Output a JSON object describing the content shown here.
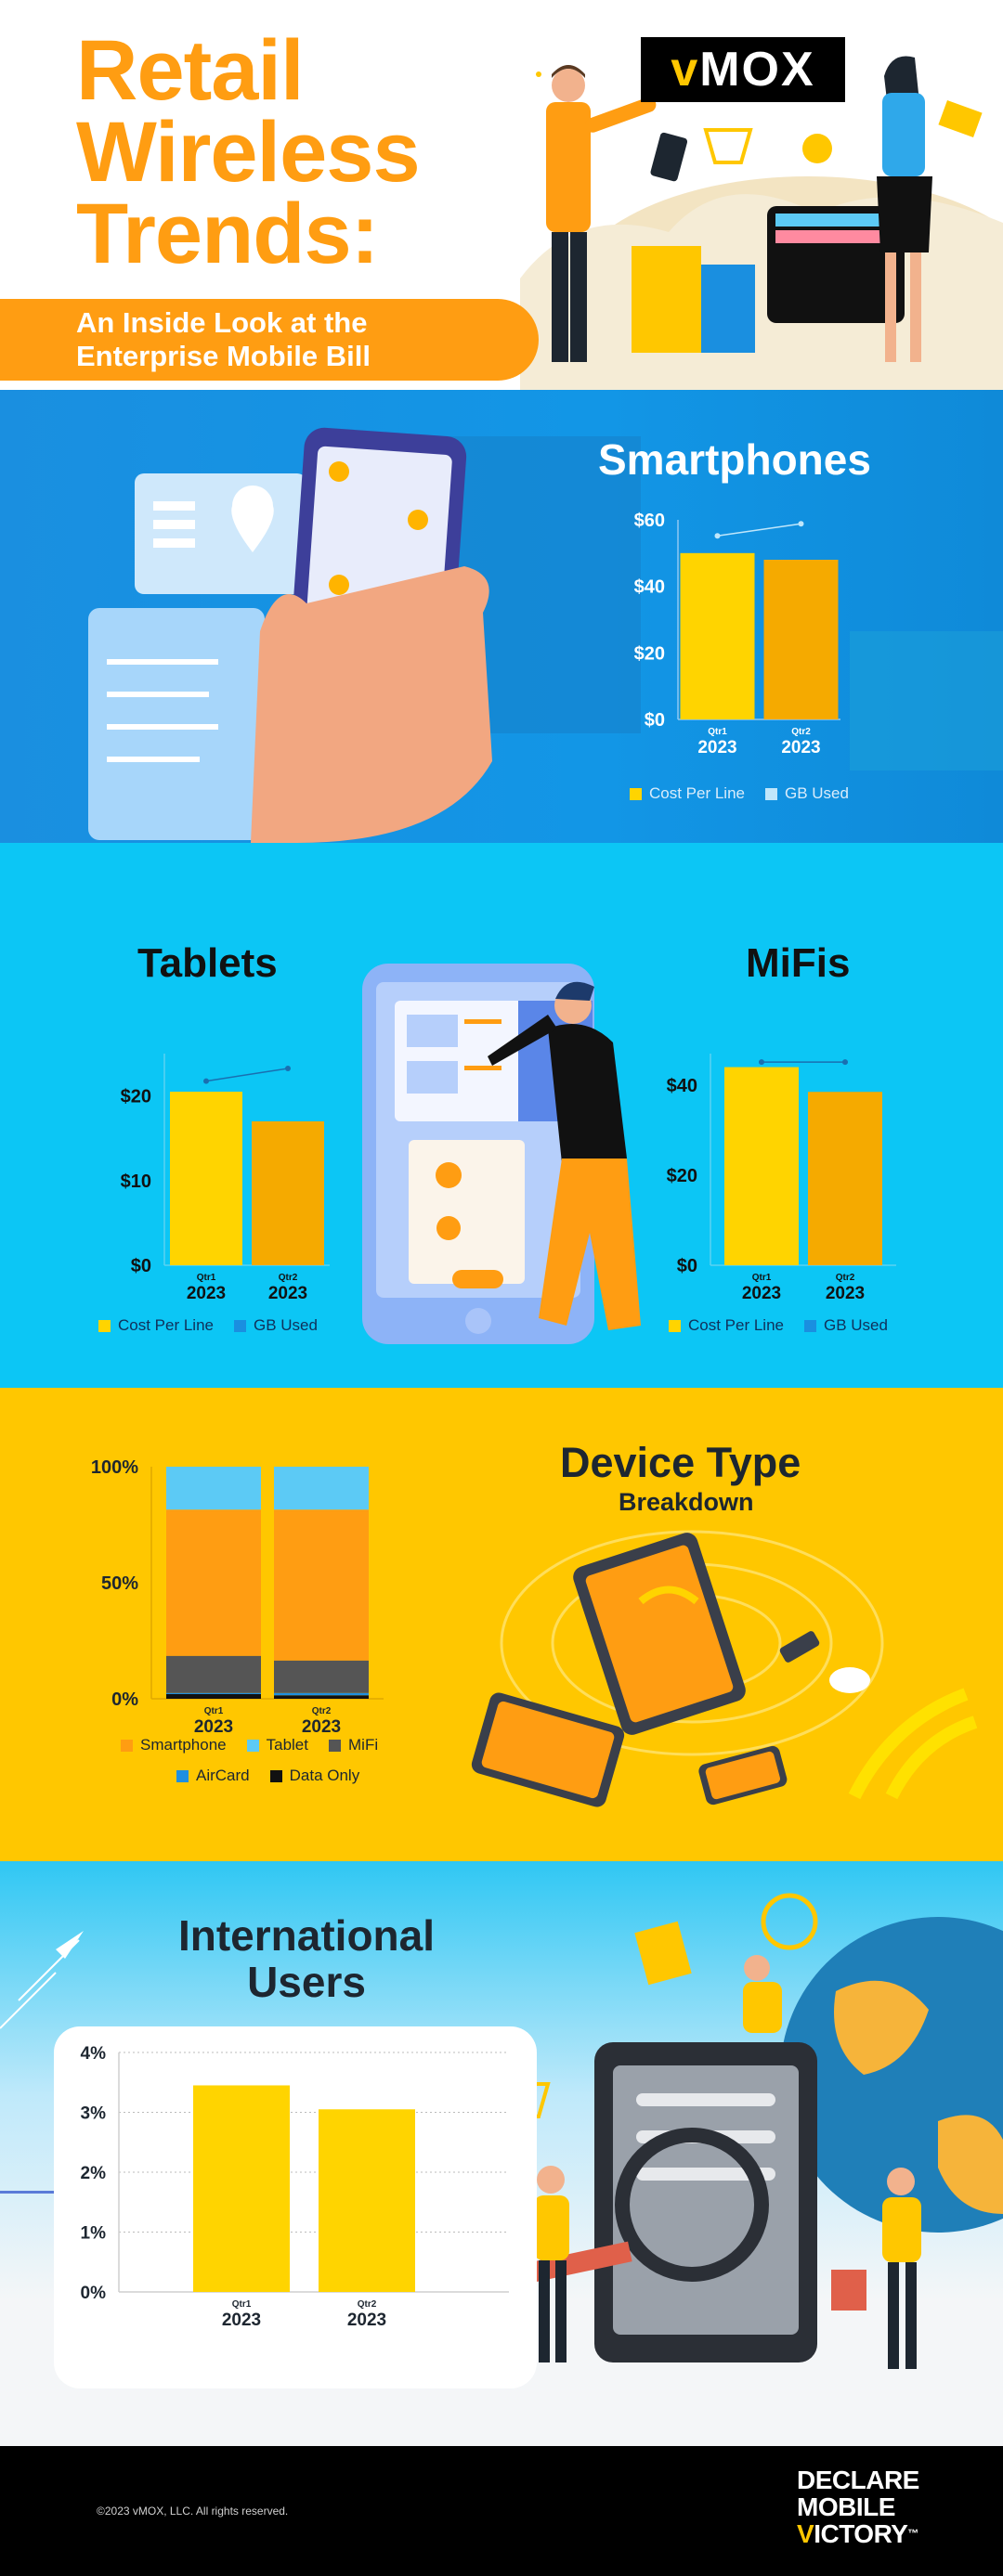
{
  "header": {
    "title_line1": "Retail",
    "title_line2": "Wireless",
    "title_line3": "Trends:",
    "subtitle_line1": "An Inside Look at the",
    "subtitle_line2": "Enterprise Mobile Bill",
    "logo_v": "v",
    "logo_rest": "MOX"
  },
  "colors": {
    "orange": "#ff9d12",
    "yellow": "#ffd400",
    "gold": "#f5aa00",
    "sky": "#0cc6f5",
    "blue": "#1a8fe0",
    "dark": "#1d2630"
  },
  "sections": {
    "smartphones_title": "Smartphones",
    "tablets_title": "Tablets",
    "mifis_title": "MiFis",
    "device_title": "Device Type",
    "device_subtitle": "Breakdown",
    "intl_title_line1": "International",
    "intl_title_line2": "Users"
  },
  "legend_labels": {
    "cost_per_line": "Cost Per Line",
    "gb_used": "GB Used",
    "smartphone": "Smartphone",
    "tablet": "Tablet",
    "mifi": "MiFi",
    "aircard": "AirCard",
    "data_only": "Data Only"
  },
  "chart_data": [
    {
      "id": "smartphones",
      "type": "bar",
      "title": "Smartphones",
      "categories": [
        [
          "Qtr1",
          "2023"
        ],
        [
          "Qtr2",
          "2023"
        ]
      ],
      "series": [
        {
          "name": "Cost Per Line",
          "values": [
            50,
            48
          ],
          "color_key": "bars"
        },
        {
          "name": "GB Used",
          "relative_values": [
            0.92,
            0.98
          ],
          "marker": "line"
        }
      ],
      "bar_colors": [
        "#ffd400",
        "#f5aa00"
      ],
      "yticks": [
        "$0",
        "$20",
        "$40",
        "$60"
      ],
      "ylim": [
        0,
        60
      ],
      "legend": "bottom"
    },
    {
      "id": "tablets",
      "type": "bar",
      "title": "Tablets",
      "categories": [
        [
          "Qtr1",
          "2023"
        ],
        [
          "Qtr2",
          "2023"
        ]
      ],
      "series": [
        {
          "name": "Cost Per Line",
          "values": [
            20.5,
            17
          ]
        },
        {
          "name": "GB Used",
          "relative_values": [
            0.87,
            0.93
          ],
          "marker": "line"
        }
      ],
      "bar_colors": [
        "#ffd400",
        "#f5aa00"
      ],
      "yticks": [
        "$0",
        "$10",
        "$20"
      ],
      "ylim": [
        0,
        25
      ],
      "legend": "bottom"
    },
    {
      "id": "mifis",
      "type": "bar",
      "title": "MiFis",
      "categories": [
        [
          "Qtr1",
          "2023"
        ],
        [
          "Qtr2",
          "2023"
        ]
      ],
      "series": [
        {
          "name": "Cost Per Line",
          "values": [
            44,
            38.5
          ]
        },
        {
          "name": "GB Used",
          "relative_values": [
            0.96,
            0.96
          ],
          "marker": "line"
        }
      ],
      "bar_colors": [
        "#ffd400",
        "#f5aa00"
      ],
      "yticks": [
        "$0",
        "$20",
        "$40"
      ],
      "ylim": [
        0,
        47
      ],
      "legend": "bottom"
    },
    {
      "id": "device_type",
      "type": "bar",
      "stacked": true,
      "title": "Device Type Breakdown",
      "categories": [
        [
          "Qtr1",
          "2023"
        ],
        [
          "Qtr2",
          "2023"
        ]
      ],
      "series": [
        {
          "name": "Data Only",
          "values": [
            2,
            1.5
          ],
          "color": "#111111"
        },
        {
          "name": "AirCard",
          "values": [
            0.5,
            1
          ],
          "color": "#1f8fe0"
        },
        {
          "name": "MiFi",
          "values": [
            16,
            14
          ],
          "color": "#555555"
        },
        {
          "name": "Smartphone",
          "values": [
            63,
            65
          ],
          "color": "#ff9d12"
        },
        {
          "name": "Tablet",
          "values": [
            18.5,
            18.5
          ],
          "color": "#5ccaf5"
        }
      ],
      "yticks": [
        "0%",
        "50%",
        "100%"
      ],
      "ylim": [
        0,
        100
      ],
      "legend": "bottom"
    },
    {
      "id": "international",
      "type": "bar",
      "title": "International Users",
      "categories": [
        [
          "Qtr1",
          "2023"
        ],
        [
          "Qtr2",
          "2023"
        ]
      ],
      "series": [
        {
          "name": "",
          "values": [
            3.45,
            3.05
          ]
        }
      ],
      "bar_colors": [
        "#ffd400",
        "#ffd400"
      ],
      "yticks": [
        "0%",
        "1%",
        "2%",
        "3%",
        "4%"
      ],
      "ylim": [
        0,
        4
      ],
      "grid": true
    }
  ],
  "footer": {
    "copyright": "©2023 vMOX, LLC. All rights reserved.",
    "brand_line1": "DECLARE",
    "brand_line2": "MOBILE",
    "brand_v": "V",
    "brand_line3_rest": "ICTORY",
    "brand_tm": "™"
  }
}
